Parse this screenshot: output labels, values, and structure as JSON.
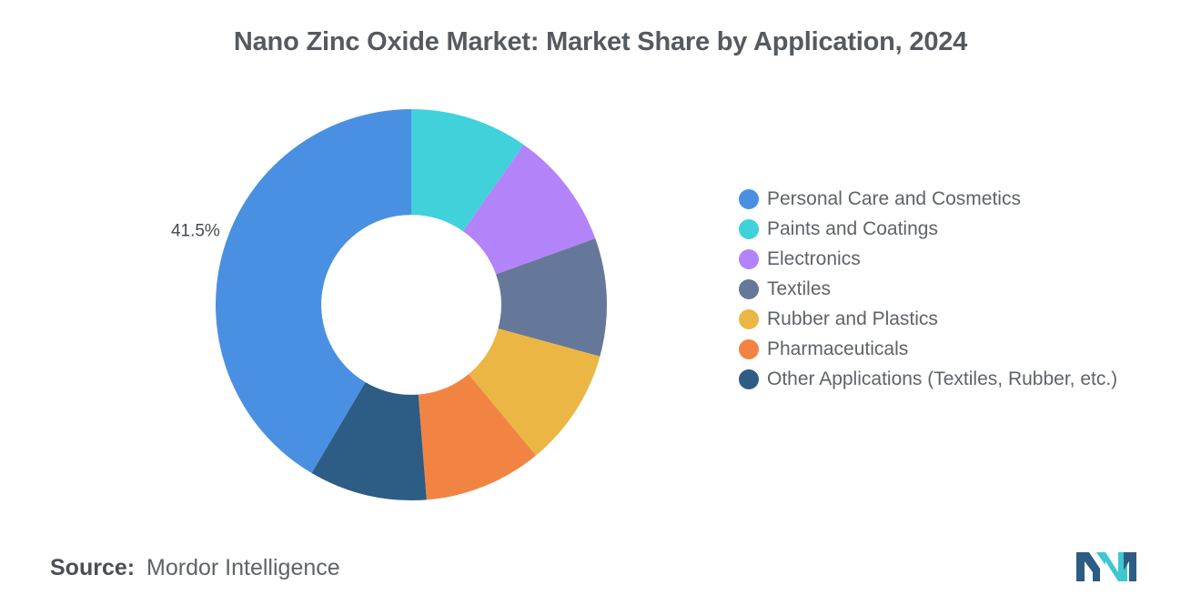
{
  "chart_data": {
    "type": "pie",
    "title": "Nano Zinc Oxide Market: Market Share by Application, 2024",
    "categories": [
      "Personal Care and Cosmetics",
      "Paints and Coatings",
      "Electronics",
      "Textiles",
      "Rubber and Plastics",
      "Pharmaceuticals",
      "Other Applications (Textiles, Rubber, etc.)"
    ],
    "values": [
      41.5,
      9.75,
      9.75,
      9.75,
      9.75,
      9.75,
      9.75
    ],
    "colors": [
      "#4a90e2",
      "#40d1db",
      "#b383f9",
      "#66789a",
      "#ebb644",
      "#f28443",
      "#2d5c84"
    ],
    "data_labels": [
      "41.5%",
      "",
      "",
      "",
      "",
      "",
      ""
    ],
    "legend_position": "right",
    "hole": 0.46
  },
  "source": {
    "label": "Source:",
    "value": "Mordor Intelligence"
  },
  "logo": {
    "colors": [
      "#2d5c84",
      "#40c7d3"
    ]
  }
}
